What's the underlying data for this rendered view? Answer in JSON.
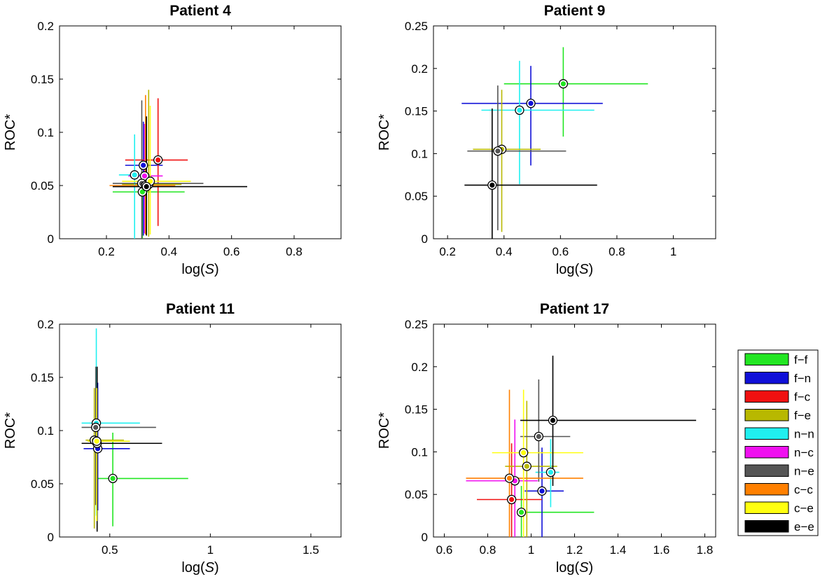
{
  "colors": {
    "f-f": "#22e622",
    "f-n": "#1010d8",
    "f-c": "#f01010",
    "f-e": "#b8b800",
    "n-n": "#20f0f0",
    "n-c": "#f010f0",
    "n-e": "#555555",
    "c-c": "#ff8000",
    "c-e": "#ffff10",
    "e-e": "#000000"
  },
  "legend": {
    "entries": [
      "f−f",
      "f−n",
      "f−c",
      "f−e",
      "n−n",
      "n−c",
      "n−e",
      "c−c",
      "c−e",
      "e−e"
    ],
    "keys": [
      "f-f",
      "f-n",
      "f-c",
      "f-e",
      "n-n",
      "n-c",
      "n-e",
      "c-c",
      "c-e",
      "e-e"
    ]
  },
  "chart_data": [
    {
      "type": "scatter",
      "title": "Patient 4",
      "xlabel_prefix": "log(",
      "xlabel_var": "S",
      "xlabel_suffix": ")",
      "ylabel": "ROC*",
      "xlim": [
        0.05,
        0.95
      ],
      "ylim": [
        0,
        0.2
      ],
      "xticks": [
        0.2,
        0.4,
        0.6,
        0.8
      ],
      "xtick_labels": [
        "0.2",
        "0.4",
        "0.6",
        "0.8"
      ],
      "yticks": [
        0,
        0.05,
        0.1,
        0.15,
        0.2
      ],
      "ytick_labels": [
        "0",
        "0.05",
        "0.1",
        "0.15",
        "0.2"
      ],
      "points": [
        {
          "key": "f-f",
          "x": 0.315,
          "y": 0.044,
          "xerr": [
            0.22,
            0.45
          ],
          "yerr": [
            0.0,
            0.052
          ]
        },
        {
          "key": "f-n",
          "x": 0.318,
          "y": 0.069,
          "xerr": [
            0.26,
            0.38
          ],
          "yerr": [
            0.003,
            0.11
          ]
        },
        {
          "key": "f-c",
          "x": 0.365,
          "y": 0.074,
          "xerr": [
            0.26,
            0.46
          ],
          "yerr": [
            0.012,
            0.132
          ]
        },
        {
          "key": "f-e",
          "x": 0.335,
          "y": 0.051,
          "xerr": [
            0.25,
            0.44
          ],
          "yerr": [
            0.002,
            0.14
          ]
        },
        {
          "key": "n-n",
          "x": 0.29,
          "y": 0.06,
          "xerr": [
            0.24,
            0.34
          ],
          "yerr": [
            0.0,
            0.098
          ]
        },
        {
          "key": "n-c",
          "x": 0.322,
          "y": 0.059,
          "xerr": [
            0.27,
            0.38
          ],
          "yerr": [
            0.005,
            0.108
          ]
        },
        {
          "key": "n-e",
          "x": 0.313,
          "y": 0.052,
          "xerr": [
            0.22,
            0.51
          ],
          "yerr": [
            0.0,
            0.13
          ]
        },
        {
          "key": "c-c",
          "x": 0.325,
          "y": 0.05,
          "xerr": [
            0.21,
            0.42
          ],
          "yerr": [
            0.004,
            0.135
          ]
        },
        {
          "key": "c-e",
          "x": 0.34,
          "y": 0.054,
          "xerr": [
            0.25,
            0.47
          ],
          "yerr": [
            0.004,
            0.125
          ]
        },
        {
          "key": "e-e",
          "x": 0.328,
          "y": 0.049,
          "xerr": [
            0.22,
            0.65
          ],
          "yerr": [
            0.003,
            0.115
          ]
        }
      ]
    },
    {
      "type": "scatter",
      "title": "Patient 9",
      "xlabel_prefix": "log(",
      "xlabel_var": "S",
      "xlabel_suffix": ")",
      "ylabel": "ROC*",
      "xlim": [
        0.15,
        1.15
      ],
      "ylim": [
        0,
        0.25
      ],
      "xticks": [
        0.2,
        0.4,
        0.6,
        0.8,
        1.0
      ],
      "xtick_labels": [
        "0.2",
        "0.4",
        "0.6",
        "0.8",
        "1"
      ],
      "yticks": [
        0,
        0.05,
        0.1,
        0.15,
        0.2,
        0.25
      ],
      "ytick_labels": [
        "0",
        "0.05",
        "0.1",
        "0.15",
        "0.2",
        "0.25"
      ],
      "points": [
        {
          "key": "f-f",
          "x": 0.61,
          "y": 0.182,
          "xerr": [
            0.4,
            0.91
          ],
          "yerr": [
            0.12,
            0.225
          ]
        },
        {
          "key": "f-n",
          "x": 0.495,
          "y": 0.159,
          "xerr": [
            0.25,
            0.75
          ],
          "yerr": [
            0.086,
            0.203
          ]
        },
        {
          "key": "n-n",
          "x": 0.455,
          "y": 0.151,
          "xerr": [
            0.32,
            0.72
          ],
          "yerr": [
            0.064,
            0.209
          ]
        },
        {
          "key": "f-e",
          "x": 0.392,
          "y": 0.105,
          "xerr": [
            0.29,
            0.53
          ],
          "yerr": [
            0.008,
            0.175
          ]
        },
        {
          "key": "n-e",
          "x": 0.378,
          "y": 0.103,
          "xerr": [
            0.27,
            0.62
          ],
          "yerr": [
            0.01,
            0.18
          ]
        },
        {
          "key": "e-e",
          "x": 0.358,
          "y": 0.063,
          "xerr": [
            0.26,
            0.73
          ],
          "yerr": [
            0.0,
            0.153
          ]
        }
      ]
    },
    {
      "type": "scatter",
      "title": "Patient 11",
      "xlabel_prefix": "log(",
      "xlabel_var": "S",
      "xlabel_suffix": ")",
      "ylabel": "ROC*",
      "xlim": [
        0.25,
        1.65
      ],
      "ylim": [
        0,
        0.2
      ],
      "xticks": [
        0.5,
        1.0,
        1.5
      ],
      "xtick_labels": [
        "0.5",
        "1",
        "1.5"
      ],
      "yticks": [
        0,
        0.05,
        0.1,
        0.15,
        0.2
      ],
      "ytick_labels": [
        "0",
        "0.05",
        "0.1",
        "0.15",
        "0.2"
      ],
      "points": [
        {
          "key": "f-f",
          "x": 0.515,
          "y": 0.055,
          "xerr": [
            0.44,
            0.89
          ],
          "yerr": [
            0.01,
            0.098
          ]
        },
        {
          "key": "f-n",
          "x": 0.44,
          "y": 0.083,
          "xerr": [
            0.37,
            0.6
          ],
          "yerr": [
            0.025,
            0.145
          ]
        },
        {
          "key": "n-n",
          "x": 0.433,
          "y": 0.107,
          "xerr": [
            0.36,
            0.65
          ],
          "yerr": [
            0.02,
            0.196
          ]
        },
        {
          "key": "n-e",
          "x": 0.43,
          "y": 0.103,
          "xerr": [
            0.36,
            0.73
          ],
          "yerr": [
            0.03,
            0.16
          ]
        },
        {
          "key": "f-e",
          "x": 0.423,
          "y": 0.091,
          "xerr": [
            0.38,
            0.57
          ],
          "yerr": [
            0.008,
            0.14
          ]
        },
        {
          "key": "e-e",
          "x": 0.437,
          "y": 0.088,
          "xerr": [
            0.36,
            0.76
          ],
          "yerr": [
            0.005,
            0.16
          ]
        },
        {
          "key": "c-e",
          "x": 0.435,
          "y": 0.09,
          "xerr": [
            0.39,
            0.6
          ],
          "yerr": [
            0.015,
            0.14
          ]
        }
      ]
    },
    {
      "type": "scatter",
      "title": "Patient 17",
      "xlabel_prefix": "log(",
      "xlabel_var": "S",
      "xlabel_suffix": ")",
      "ylabel": "ROC*",
      "xlim": [
        0.55,
        1.85
      ],
      "ylim": [
        0,
        0.25
      ],
      "xticks": [
        0.6,
        0.8,
        1.0,
        1.2,
        1.4,
        1.6,
        1.8
      ],
      "xtick_labels": [
        "0.6",
        "0.8",
        "1",
        "1.2",
        "1.4",
        "1.6",
        "1.8"
      ],
      "yticks": [
        0,
        0.05,
        0.1,
        0.15,
        0.2,
        0.25
      ],
      "ytick_labels": [
        "0",
        "0.05",
        "0.1",
        "0.15",
        "0.2",
        "0.25"
      ],
      "points": [
        {
          "key": "f-f",
          "x": 0.955,
          "y": 0.029,
          "xerr": [
            0.95,
            1.29
          ],
          "yerr": [
            0.0,
            0.06
          ]
        },
        {
          "key": "f-n",
          "x": 1.05,
          "y": 0.054,
          "xerr": [
            0.97,
            1.15
          ],
          "yerr": [
            0.0,
            0.105
          ]
        },
        {
          "key": "f-c",
          "x": 0.91,
          "y": 0.044,
          "xerr": [
            0.75,
            1.05
          ],
          "yerr": [
            0.0,
            0.11
          ]
        },
        {
          "key": "f-e",
          "x": 0.98,
          "y": 0.083,
          "xerr": [
            0.88,
            1.12
          ],
          "yerr": [
            0.0,
            0.16
          ]
        },
        {
          "key": "n-n",
          "x": 1.09,
          "y": 0.076,
          "xerr": [
            1.02,
            1.13
          ],
          "yerr": [
            0.035,
            0.115
          ]
        },
        {
          "key": "n-c",
          "x": 0.925,
          "y": 0.066,
          "xerr": [
            0.7,
            1.03
          ],
          "yerr": [
            0.0,
            0.138
          ]
        },
        {
          "key": "n-e",
          "x": 1.035,
          "y": 0.118,
          "xerr": [
            0.95,
            1.18
          ],
          "yerr": [
            0.065,
            0.185
          ]
        },
        {
          "key": "c-c",
          "x": 0.9,
          "y": 0.069,
          "xerr": [
            0.7,
            1.24
          ],
          "yerr": [
            0.0,
            0.173
          ]
        },
        {
          "key": "c-e",
          "x": 0.965,
          "y": 0.099,
          "xerr": [
            0.82,
            1.24
          ],
          "yerr": [
            0.0,
            0.173
          ]
        },
        {
          "key": "e-e",
          "x": 1.1,
          "y": 0.137,
          "xerr": [
            0.95,
            1.76
          ],
          "yerr": [
            0.06,
            0.213
          ]
        }
      ]
    }
  ]
}
